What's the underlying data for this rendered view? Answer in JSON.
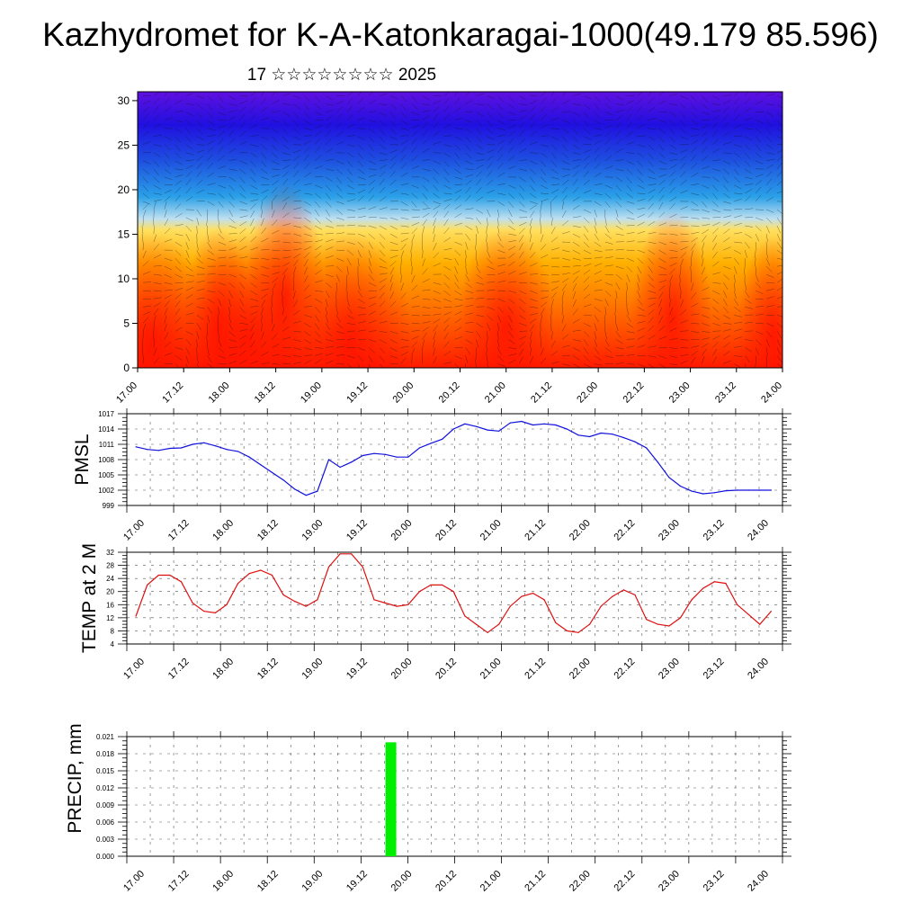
{
  "header": {
    "title": "Kazhydromet for K-A-Katonkaragai-1000(49.179 85.596)",
    "subtitle": "17 ☆☆☆☆☆☆☆☆ 2025"
  },
  "x_tick_labels": [
    "17.00",
    "17.12",
    "18.00",
    "18.12",
    "19.00",
    "19.12",
    "20.00",
    "20.12",
    "21.00",
    "21.12",
    "22.00",
    "22.12",
    "23.00",
    "23.12",
    "24.00"
  ],
  "colors": {
    "pmsl_line": "#1010dd",
    "temp_line": "#dd1010",
    "precip_bar": "#00ee00",
    "grid": "#555555"
  },
  "chart_data": [
    {
      "type": "heatmap",
      "description_key": "wind-temperature cross section",
      "y_ticks": [
        0,
        5,
        10,
        15,
        20,
        25,
        30
      ],
      "ylim": [
        0,
        31
      ],
      "xlim": [
        0,
        14
      ],
      "colorscale": [
        "#ff1a00",
        "#ff6a00",
        "#ffb000",
        "#ffe060",
        "#bfe0f0",
        "#2aa0e8",
        "#1e50e0",
        "#2010e0",
        "#6010e0"
      ],
      "level_fractions": [
        0.0,
        0.2,
        0.38,
        0.5,
        0.54,
        0.62,
        0.75,
        0.88,
        1.0
      ]
    },
    {
      "type": "line",
      "ylabel": "PMSL",
      "ylim": [
        999,
        1017
      ],
      "y_ticks": [
        999,
        1002,
        1005,
        1008,
        1011,
        1014,
        1017
      ],
      "x": [
        0,
        0.25,
        0.5,
        0.75,
        1,
        1.25,
        1.5,
        1.75,
        2,
        2.25,
        2.5,
        2.75,
        3,
        3.25,
        3.5,
        3.75,
        4,
        4.25,
        4.5,
        4.75,
        5,
        5.25,
        5.5,
        5.75,
        6,
        6.25,
        6.5,
        6.75,
        7,
        7.25,
        7.5,
        7.75,
        8,
        8.25,
        8.5,
        8.75,
        9,
        9.25,
        9.5,
        9.75,
        10,
        10.25,
        10.5,
        10.75,
        11,
        11.25,
        11.5,
        11.75,
        12,
        12.25,
        12.5,
        12.75,
        13,
        13.25,
        13.5,
        13.75,
        14
      ],
      "series": [
        {
          "values": [
            1010.5,
            1010,
            1009.8,
            1010.2,
            1010.3,
            1011,
            1011.3,
            1010.7,
            1010,
            1009.6,
            1008.5,
            1007,
            1005.5,
            1004,
            1002.2,
            1001,
            1001.8,
            1008,
            1006.5,
            1007.5,
            1008.8,
            1009.2,
            1009,
            1008.5,
            1008.5,
            1010.3,
            1011.2,
            1012,
            1014,
            1015,
            1014.5,
            1013.8,
            1013.6,
            1015.2,
            1015.5,
            1014.8,
            1015,
            1014.8,
            1014,
            1012.8,
            1012.5,
            1013.2,
            1013,
            1012.3,
            1011.5,
            1010.3,
            1007.5,
            1004.5,
            1002.8,
            1001.8,
            1001.3,
            1001.5,
            1001.9,
            1002,
            1002,
            1002,
            1002
          ]
        }
      ]
    },
    {
      "type": "line",
      "ylabel": "TEMP at 2 M",
      "ylim": [
        4,
        32
      ],
      "y_ticks": [
        4,
        8,
        12,
        16,
        20,
        24,
        28,
        32
      ],
      "x": [
        0,
        0.25,
        0.5,
        0.75,
        1,
        1.25,
        1.5,
        1.75,
        2,
        2.25,
        2.5,
        2.75,
        3,
        3.25,
        3.5,
        3.75,
        4,
        4.25,
        4.5,
        4.75,
        5,
        5.25,
        5.5,
        5.75,
        6,
        6.25,
        6.5,
        6.75,
        7,
        7.25,
        7.5,
        7.75,
        8,
        8.25,
        8.5,
        8.75,
        9,
        9.25,
        9.5,
        9.75,
        10,
        10.25,
        10.5,
        10.75,
        11,
        11.25,
        11.5,
        11.75,
        12,
        12.25,
        12.5,
        12.75,
        13,
        13.25,
        13.5,
        13.75,
        14
      ],
      "series": [
        {
          "values": [
            12.5,
            22,
            25,
            25,
            23,
            16.5,
            14,
            13.5,
            16,
            22.5,
            25.5,
            26.5,
            25,
            19,
            17,
            15.5,
            17.5,
            27.5,
            31.5,
            31.5,
            27.5,
            17.5,
            16.5,
            15.5,
            16,
            20,
            22,
            22,
            20,
            12.5,
            10,
            7.5,
            10,
            15.5,
            18.5,
            19.5,
            17.5,
            10.5,
            8,
            7.5,
            10,
            15.5,
            18.5,
            20.5,
            19,
            11.5,
            10,
            9.5,
            12,
            17.5,
            21,
            23,
            22.5,
            16,
            13,
            10,
            14
          ]
        }
      ]
    },
    {
      "type": "bar",
      "ylabel": "PRECIP, mm",
      "ylim": [
        0,
        0.021
      ],
      "y_ticks": [
        "0.000",
        "0.003",
        "0.006",
        "0.009",
        "0.012",
        "0.015",
        "0.018",
        "0.021"
      ],
      "bars": [
        {
          "x": 5.5,
          "value": 0.02
        }
      ]
    }
  ]
}
